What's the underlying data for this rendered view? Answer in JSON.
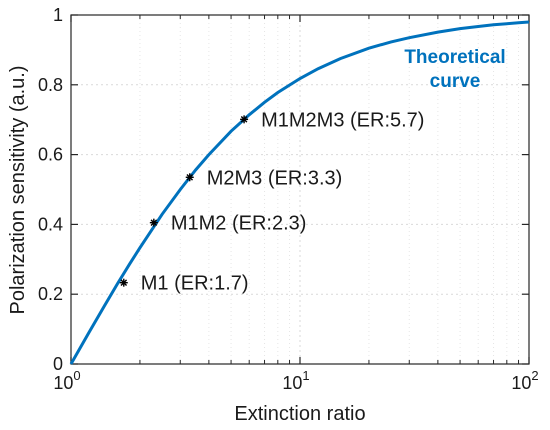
{
  "chart_data": {
    "type": "line",
    "xscale": "log",
    "xlim": [
      1,
      100
    ],
    "ylim": [
      0,
      1
    ],
    "grid": true,
    "xlabel": "Extinction ratio",
    "ylabel": "Polarization sensitivity (a.u.)",
    "xticks": [
      {
        "value": 1,
        "base": "10",
        "exp": "0"
      },
      {
        "value": 10,
        "base": "10",
        "exp": "1"
      },
      {
        "value": 100,
        "base": "10",
        "exp": "2"
      }
    ],
    "yticks": [
      {
        "value": 0,
        "label": "0"
      },
      {
        "value": 0.2,
        "label": "0.2"
      },
      {
        "value": 0.4,
        "label": "0.4"
      },
      {
        "value": 0.6,
        "label": "0.6"
      },
      {
        "value": 0.8,
        "label": "0.8"
      },
      {
        "value": 1,
        "label": "1"
      }
    ],
    "curve": {
      "label_line1": "Theoretical",
      "label_line2": "curve",
      "color": "#0072bd",
      "x": [
        1,
        1.2,
        1.4,
        1.6,
        1.8,
        2,
        2.5,
        3,
        3.5,
        4,
        5,
        6,
        7,
        8,
        10,
        12,
        15,
        20,
        25,
        30,
        40,
        50,
        60,
        70,
        80,
        90,
        100
      ],
      "y": [
        0,
        0.091,
        0.167,
        0.231,
        0.286,
        0.333,
        0.429,
        0.5,
        0.556,
        0.6,
        0.667,
        0.714,
        0.75,
        0.778,
        0.818,
        0.846,
        0.875,
        0.905,
        0.923,
        0.935,
        0.951,
        0.961,
        0.967,
        0.972,
        0.975,
        0.978,
        0.98
      ]
    },
    "points": [
      {
        "name": "M1",
        "label": "M1 (ER:1.7)",
        "x": 1.7,
        "y": 0.233
      },
      {
        "name": "M1M2",
        "label": "M1M2 (ER:2.3)",
        "x": 2.3,
        "y": 0.405
      },
      {
        "name": "M2M3",
        "label": "M2M3 (ER:3.3)",
        "x": 3.3,
        "y": 0.535
      },
      {
        "name": "M1M2M3",
        "label": "M1M2M3 (ER:5.7)",
        "x": 5.7,
        "y": 0.701
      }
    ],
    "marker_color": "#000000",
    "label_color": "#1a1a1a"
  }
}
